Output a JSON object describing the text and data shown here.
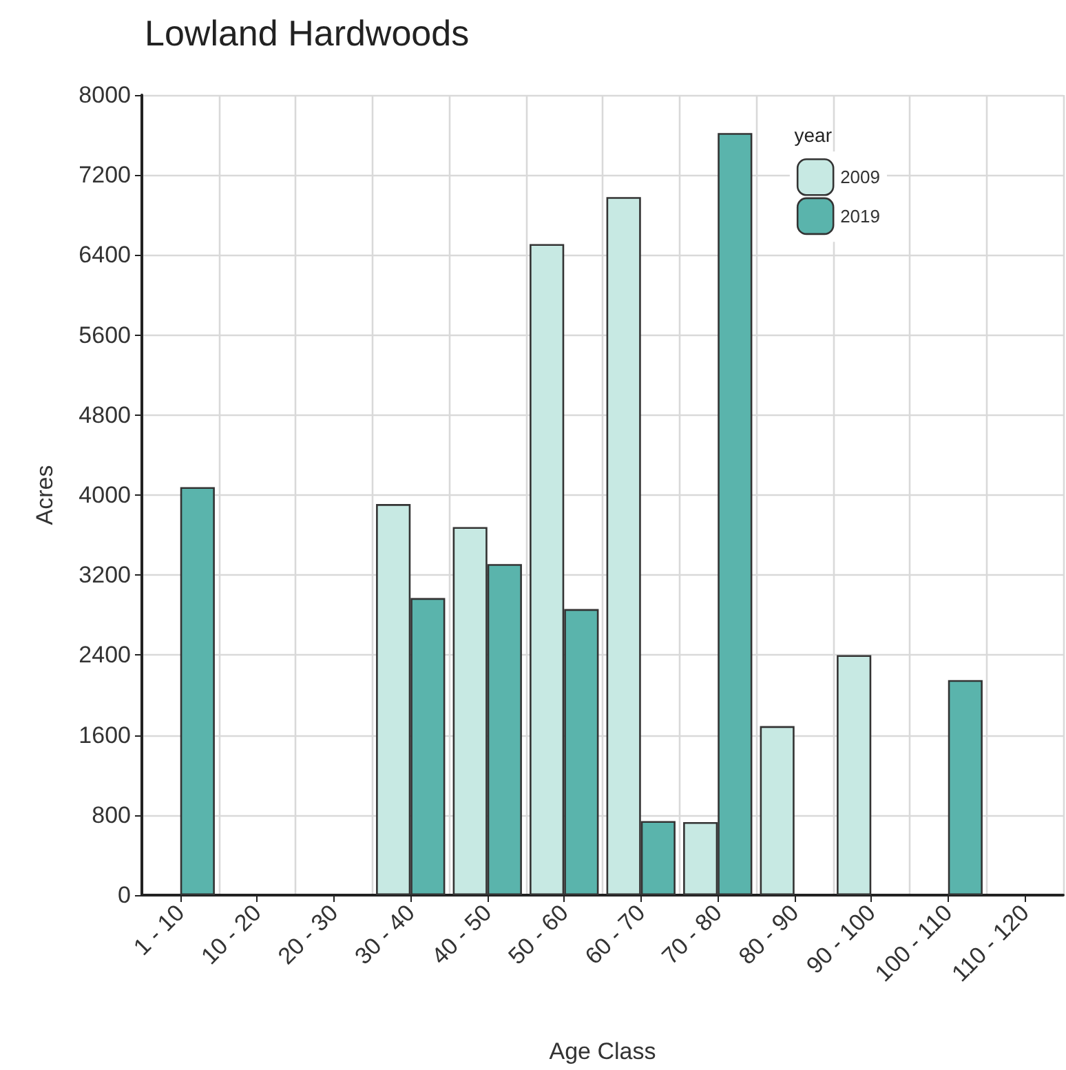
{
  "chart_data": {
    "type": "bar",
    "title": "Lowland Hardwoods",
    "xlabel": "Age Class",
    "ylabel": "Acres",
    "legend_title": "year",
    "categories": [
      "1 - 10",
      "10 - 20",
      "20 - 30",
      "30 - 40",
      "40 - 50",
      "50 - 60",
      "60 - 70",
      "70 - 80",
      "80 - 90",
      "90 - 100",
      "100 - 110",
      "110 - 120"
    ],
    "series": [
      {
        "name": "2009",
        "color": "#c7e9e3",
        "values": [
          null,
          null,
          null,
          3910,
          3680,
          6510,
          6980,
          730,
          1690,
          2400,
          null,
          null
        ]
      },
      {
        "name": "2019",
        "color": "#5ab4ac",
        "values": [
          4080,
          null,
          null,
          2970,
          3310,
          2860,
          740,
          7620,
          null,
          null,
          2150,
          null
        ]
      }
    ],
    "ylim": [
      0,
      8000
    ],
    "yticks": [
      0,
      800,
      1600,
      2400,
      3200,
      4000,
      4800,
      5600,
      6400,
      7200,
      8000
    ],
    "grid": true,
    "legend": "top right"
  }
}
